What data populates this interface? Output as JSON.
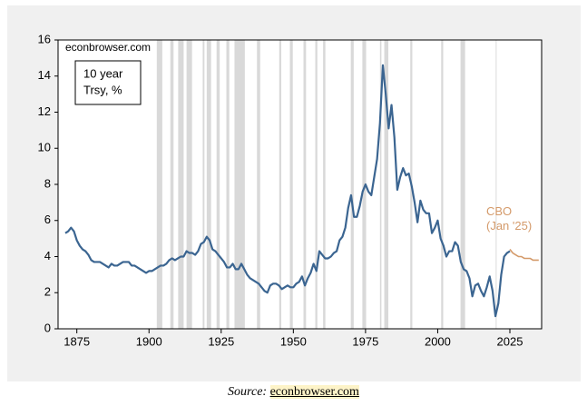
{
  "chart_data": {
    "type": "line",
    "watermark": "econbrowser.com",
    "label_box": [
      "10 year",
      "Trsy, %"
    ],
    "xlim": [
      1868.5,
      2036
    ],
    "xticks": [
      1875,
      1900,
      1925,
      1950,
      1975,
      2000,
      2025
    ],
    "ylim": [
      0,
      16
    ],
    "yticks": [
      0,
      2,
      4,
      6,
      8,
      10,
      12,
      14,
      16
    ],
    "shade_color": "#d9d9d9",
    "shaded_periods": [
      [
        1902.7,
        1904.6
      ],
      [
        1907.4,
        1908.5
      ],
      [
        1910.1,
        1912.0
      ],
      [
        1913.0,
        1914.9
      ],
      [
        1918.6,
        1919.2
      ],
      [
        1920.0,
        1921.5
      ],
      [
        1923.4,
        1924.5
      ],
      [
        1926.8,
        1927.8
      ],
      [
        1929.6,
        1933.2
      ],
      [
        1937.4,
        1938.5
      ],
      [
        1945.1,
        1945.8
      ],
      [
        1948.8,
        1949.8
      ],
      [
        1953.5,
        1954.4
      ],
      [
        1957.6,
        1958.3
      ],
      [
        1960.3,
        1961.1
      ],
      [
        1969.9,
        1970.9
      ],
      [
        1973.9,
        1975.2
      ],
      [
        1980.0,
        1980.5
      ],
      [
        1981.5,
        1982.9
      ],
      [
        1990.5,
        1991.2
      ],
      [
        2001.2,
        2001.9
      ],
      [
        2007.9,
        2009.5
      ],
      [
        2020.1,
        2020.4
      ]
    ],
    "series": [
      {
        "color": "#3b6591",
        "x": [
          1871,
          1872,
          1873,
          1874,
          1875,
          1876,
          1877,
          1878,
          1879,
          1880,
          1881,
          1882,
          1883,
          1884,
          1885,
          1886,
          1887,
          1888,
          1889,
          1890,
          1891,
          1892,
          1893,
          1894,
          1895,
          1896,
          1897,
          1898,
          1899,
          1900,
          1901,
          1902,
          1903,
          1904,
          1905,
          1906,
          1907,
          1908,
          1909,
          1910,
          1911,
          1912,
          1913,
          1914,
          1915,
          1916,
          1917,
          1918,
          1919,
          1920,
          1921,
          1922,
          1923,
          1924,
          1925,
          1926,
          1927,
          1928,
          1929,
          1930,
          1931,
          1932,
          1933,
          1934,
          1935,
          1936,
          1937,
          1938,
          1939,
          1940,
          1941,
          1942,
          1943,
          1944,
          1945,
          1946,
          1947,
          1948,
          1949,
          1950,
          1951,
          1952,
          1953,
          1954,
          1955,
          1956,
          1957,
          1958,
          1959,
          1960,
          1961,
          1962,
          1963,
          1964,
          1965,
          1966,
          1967,
          1968,
          1969,
          1970,
          1971,
          1972,
          1973,
          1974,
          1975,
          1976,
          1977,
          1978,
          1979,
          1980,
          1981,
          1982,
          1983,
          1984,
          1985,
          1986,
          1987,
          1988,
          1989,
          1990,
          1991,
          1992,
          1993,
          1994,
          1995,
          1996,
          1997,
          1998,
          1999,
          2000,
          2001,
          2002,
          2003,
          2004,
          2005,
          2006,
          2007,
          2008,
          2009,
          2010,
          2011,
          2012,
          2013,
          2014,
          2015,
          2016,
          2017,
          2018,
          2019,
          2020,
          2021,
          2022,
          2023,
          2024,
          2025
        ],
        "values": [
          5.3,
          5.4,
          5.6,
          5.4,
          4.9,
          4.6,
          4.4,
          4.3,
          4.1,
          3.8,
          3.7,
          3.7,
          3.7,
          3.6,
          3.5,
          3.4,
          3.6,
          3.5,
          3.5,
          3.6,
          3.7,
          3.7,
          3.7,
          3.5,
          3.5,
          3.4,
          3.3,
          3.2,
          3.1,
          3.2,
          3.2,
          3.3,
          3.4,
          3.5,
          3.5,
          3.6,
          3.8,
          3.9,
          3.8,
          3.9,
          4.0,
          4.0,
          4.3,
          4.2,
          4.2,
          4.1,
          4.3,
          4.7,
          4.8,
          5.1,
          4.9,
          4.4,
          4.3,
          4.1,
          3.9,
          3.7,
          3.4,
          3.4,
          3.6,
          3.3,
          3.3,
          3.6,
          3.3,
          3.0,
          2.8,
          2.7,
          2.6,
          2.5,
          2.3,
          2.1,
          2.0,
          2.4,
          2.5,
          2.5,
          2.4,
          2.2,
          2.3,
          2.4,
          2.3,
          2.3,
          2.5,
          2.6,
          2.9,
          2.4,
          2.8,
          3.1,
          3.6,
          3.2,
          4.3,
          4.1,
          3.9,
          3.9,
          4.0,
          4.2,
          4.3,
          4.9,
          5.1,
          5.6,
          6.7,
          7.4,
          6.2,
          6.2,
          6.8,
          7.6,
          8.0,
          7.6,
          7.4,
          8.4,
          9.4,
          11.4,
          14.6,
          13.0,
          11.1,
          12.4,
          10.6,
          7.7,
          8.4,
          8.9,
          8.5,
          8.6,
          7.9,
          7.0,
          5.9,
          7.1,
          6.6,
          6.4,
          6.4,
          5.3,
          5.6,
          6.0,
          5.0,
          4.6,
          4.0,
          4.3,
          4.3,
          4.8,
          4.6,
          3.7,
          3.3,
          3.2,
          2.8,
          1.8,
          2.4,
          2.5,
          2.1,
          1.8,
          2.3,
          2.9,
          2.1,
          0.7,
          1.4,
          3.0,
          4.0,
          4.2,
          4.3
        ]
      },
      {
        "color": "#d49a6a",
        "label": [
          "CBO",
          "(Jan '25)"
        ],
        "x": [
          2025,
          2026,
          2027,
          2028,
          2029,
          2030,
          2031,
          2032,
          2033,
          2034,
          2035
        ],
        "values": [
          4.4,
          4.2,
          4.1,
          4.0,
          4.0,
          3.9,
          3.9,
          3.9,
          3.8,
          3.8,
          3.8
        ]
      }
    ],
    "source": {
      "prefix": "Source:",
      "link": "econbrowser.com"
    }
  }
}
